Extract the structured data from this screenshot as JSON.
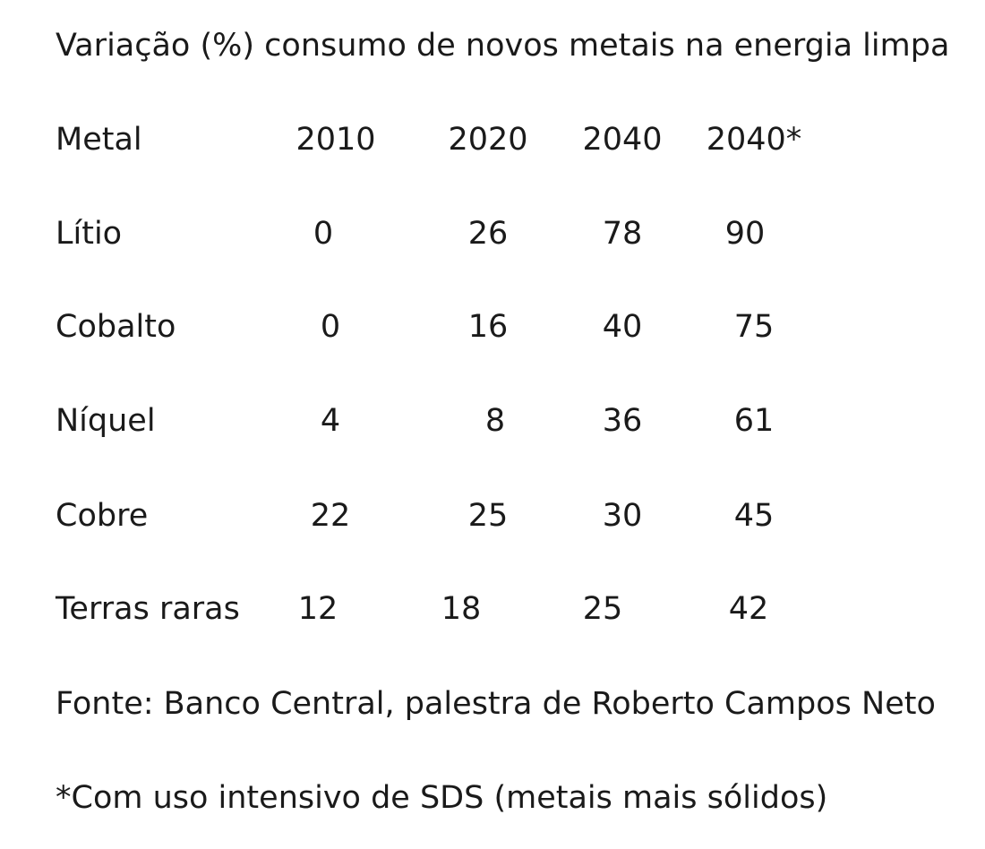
{
  "title": "Variação (%) consumo de novos metais na energia limpa",
  "table": {
    "headers": [
      "Metal",
      "2010",
      "2020",
      "2040",
      "2040*"
    ],
    "rows": [
      {
        "metal": "Lítio",
        "v2010": "0",
        "v2020": "26",
        "v2040": "78",
        "v2040s": "90"
      },
      {
        "metal": "Cobalto",
        "v2010": "0",
        "v2020": "16",
        "v2040": "40",
        "v2040s": "75"
      },
      {
        "metal": "Níquel",
        "v2010": "4",
        "v2020": "8",
        "v2040": "36",
        "v2040s": "61"
      },
      {
        "metal": "Cobre",
        "v2010": "22",
        "v2020": "25",
        "v2040": "30",
        "v2040s": "45"
      },
      {
        "metal": "Terras raras",
        "v2010": "12",
        "v2020": "18",
        "v2040": "25",
        "v2040s": "42"
      }
    ]
  },
  "source": "Fonte: Banco Central, palestra de Roberto Campos Neto",
  "footnote": "*Com uso intensivo de SDS (metais mais sólidos)"
}
